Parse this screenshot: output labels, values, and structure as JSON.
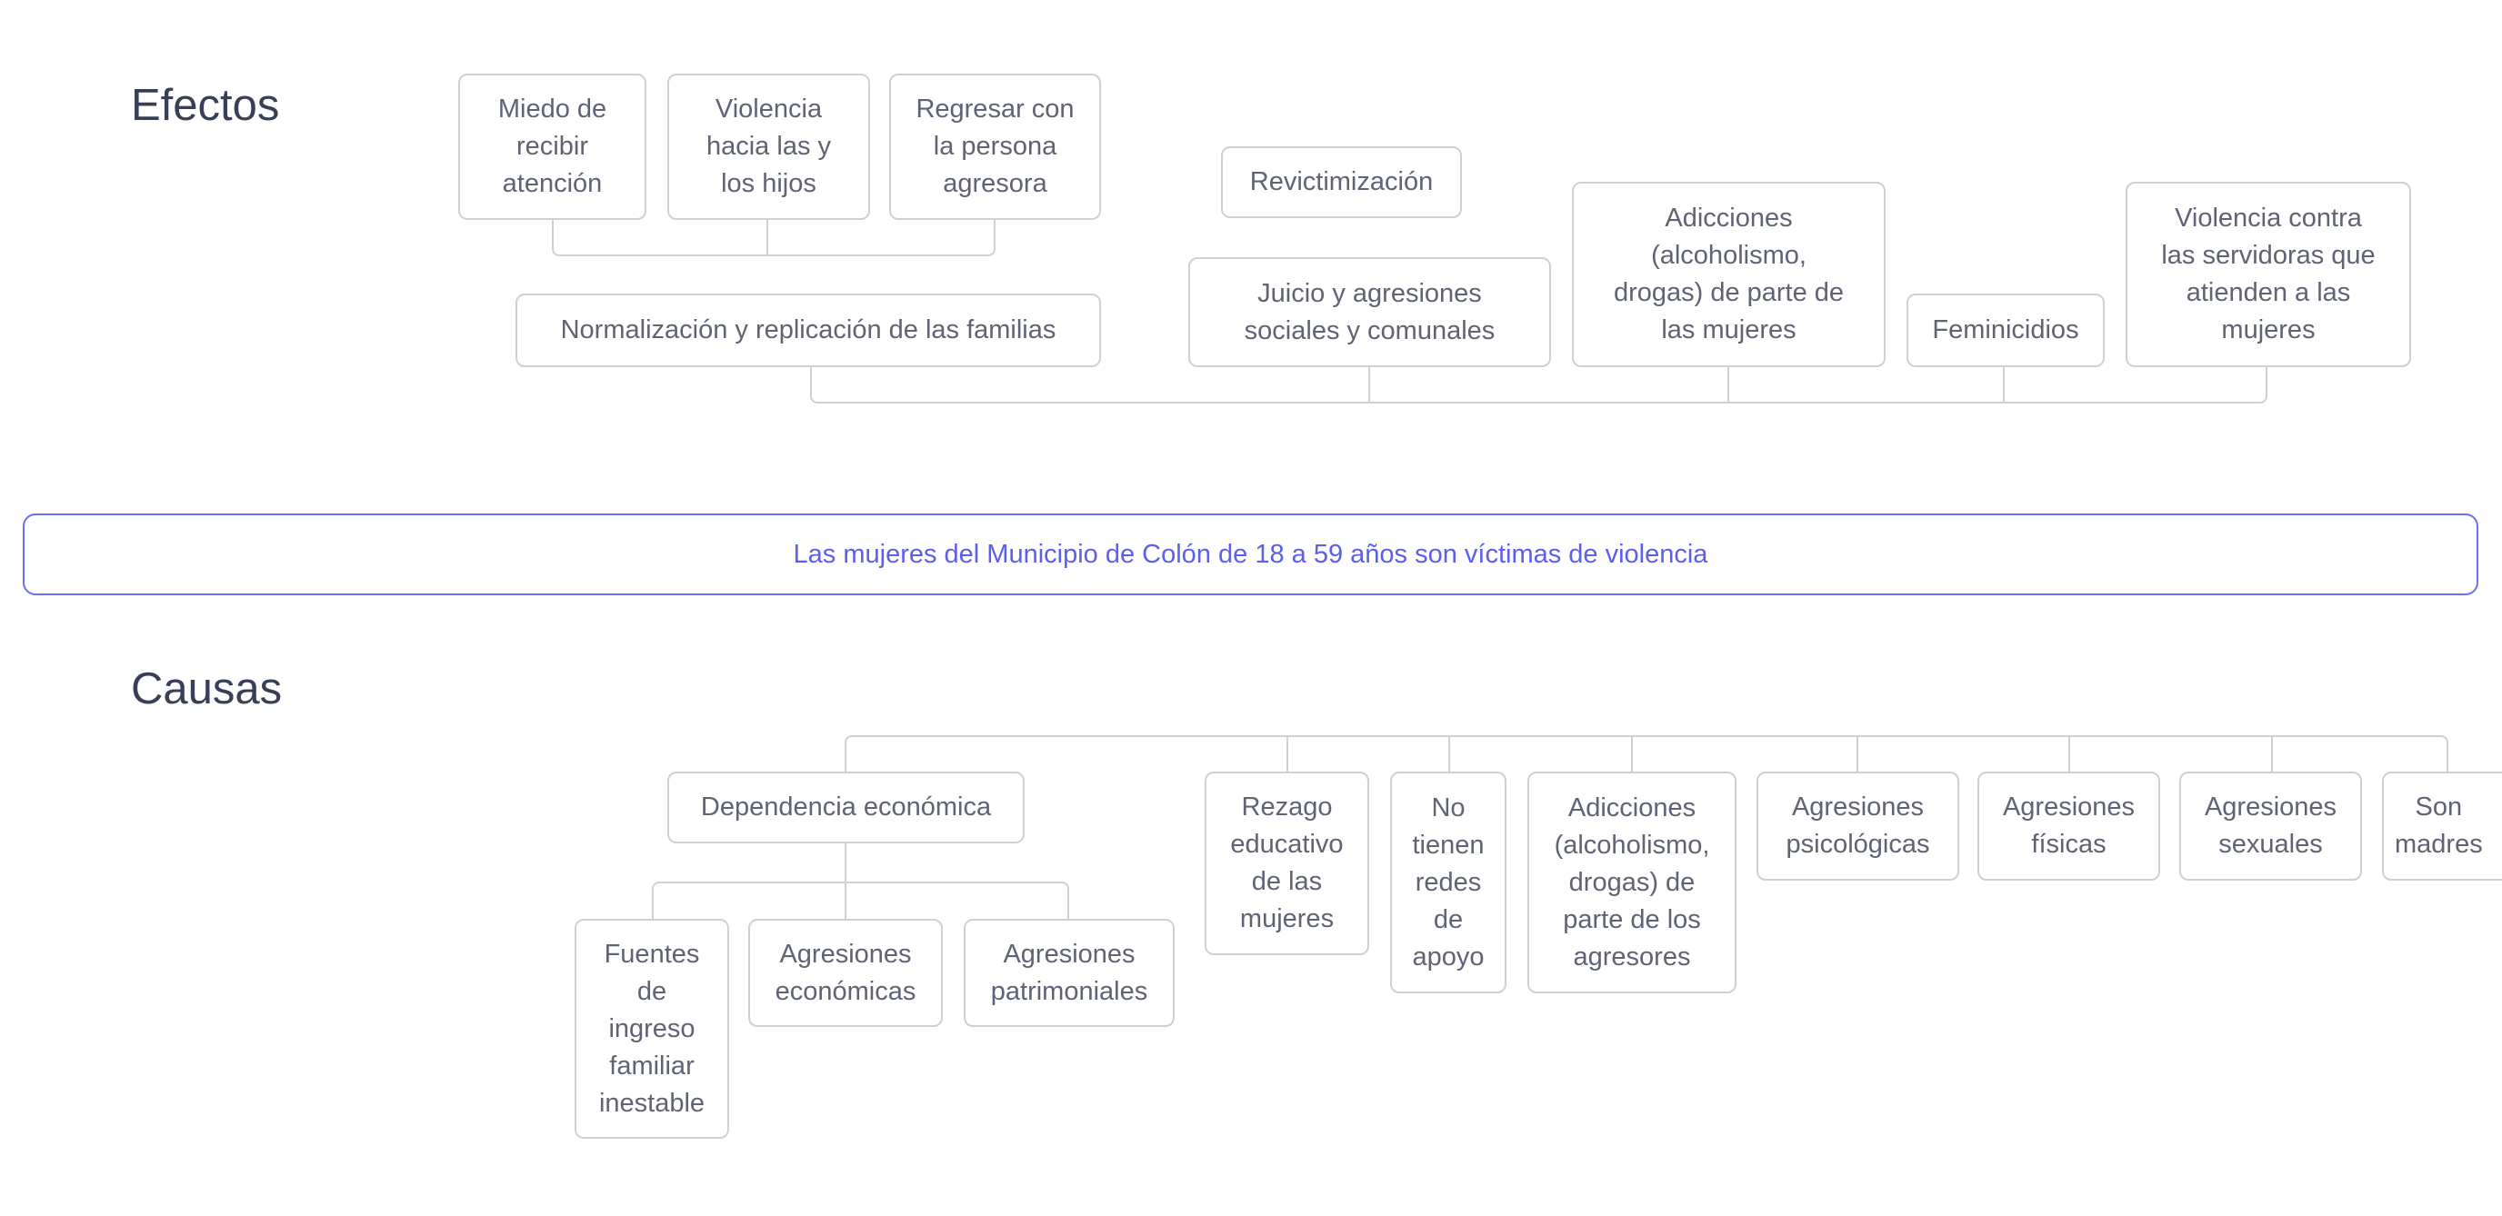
{
  "effects": {
    "title": "Efectos",
    "nodes": [
      "Miedo de\nrecibir\natención",
      "Violencia\nhacia las y\nlos hijos",
      "Regresar con\nla persona\nagresora",
      "Normalización y replicación de las familias",
      "Revictimización",
      "Juicio y agresiones\nsociales y comunales",
      "Adicciones\n(alcoholismo,\ndrogas) de parte de\nlas mujeres",
      "Feminicidios",
      "Violencia contra\nlas servidoras que\natienden a las\nmujeres"
    ]
  },
  "problem": "Las mujeres del Municipio de Colón de 18 a 59 años son víctimas de violencia",
  "causes": {
    "title": "Causas",
    "nodes": [
      "Dependencia económica",
      "Fuentes\nde\ningreso\nfamiliar\ninestable",
      "Agresiones\neconómicas",
      "Agresiones\npatrimoniales",
      "Rezago\neducativo\nde las\nmujeres",
      "No\ntienen\nredes\nde\napoyo",
      "Adicciones\n(alcoholismo,\ndrogas) de\nparte de los\nagresores",
      "Agresiones\npsicológicas",
      "Agresiones\nfísicas",
      "Agresiones\nsexuales",
      "Son\nmadres"
    ]
  },
  "colors": {
    "problem_accent": "#6b6ef5",
    "node_border": "#cfd0d6",
    "node_text": "#5f6374",
    "title_text": "#3a3f58"
  }
}
